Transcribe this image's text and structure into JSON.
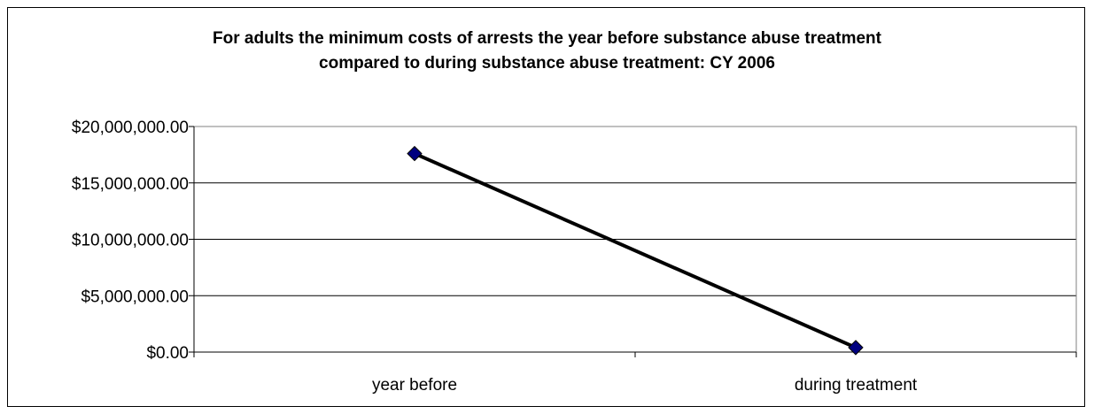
{
  "chart_data": {
    "type": "line",
    "title": "For adults the minimum costs of arrests the year before substance abuse treatment compared to during substance abuse treatment: CY 2006",
    "title_lines": [
      "For adults the minimum costs of arrests the year before substance abuse treatment",
      "compared to during substance abuse treatment: CY 2006"
    ],
    "categories": [
      "year before",
      "during treatment"
    ],
    "series": [
      {
        "values": [
          17600000,
          400000
        ],
        "color": "#000080",
        "line_color": "#000000",
        "marker": "diamond"
      }
    ],
    "ylim": [
      0,
      20000000
    ],
    "yticks": [
      0,
      5000000,
      10000000,
      15000000,
      20000000
    ],
    "ytick_labels": [
      "$0.00",
      "$5,000,000.00",
      "$10,000,000.00",
      "$15,000,000.00",
      "$20,000,000.00"
    ],
    "xlabel": "",
    "ylabel": "",
    "grid": true,
    "legend": "none"
  }
}
